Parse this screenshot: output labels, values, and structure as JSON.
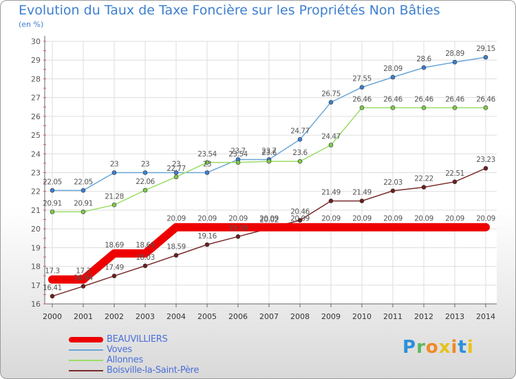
{
  "title": "Evolution du Taux de Taxe Foncière sur les Propriétés Non Bâties",
  "unit_label": "(en %)",
  "logo_text": "Proxiti",
  "chart_data": {
    "type": "line",
    "title": "Evolution du Taux de Taxe Foncière sur les Propriétés Non Bâties",
    "ylabel": "(en %)",
    "ylim": [
      16,
      30
    ],
    "yticks": [
      16,
      17,
      18,
      19,
      20,
      21,
      22,
      23,
      24,
      25,
      26,
      27,
      28,
      29,
      30
    ],
    "grid": true,
    "legend_position": "bottom-left",
    "x": [
      "2000",
      "2001",
      "2002",
      "2003",
      "2004",
      "2005",
      "2006",
      "2007",
      "2008",
      "2009",
      "2010",
      "2011",
      "2012",
      "2013",
      "2014"
    ],
    "series": [
      {
        "name": "BEAUVILLIERS",
        "color": "#ee0000",
        "style": "thick",
        "values": [
          17.3,
          17.3,
          18.69,
          18.69,
          20.09,
          20.09,
          20.09,
          20.09,
          20.09,
          20.09,
          20.09,
          20.09,
          20.09,
          20.09,
          20.09
        ],
        "labels": [
          "17.3",
          "17.3",
          "18.69",
          "18.69",
          "20.09",
          "20.09",
          "20.09",
          "20.09",
          "20.09",
          "20.09",
          "20.09",
          "20.09",
          "20.09",
          "20.09",
          "20.09"
        ]
      },
      {
        "name": "Voves",
        "color": "#6aa6d8",
        "marker_color": "#3d7fcf",
        "style": "thin",
        "values": [
          22.05,
          22.05,
          23,
          23,
          23,
          23,
          23.7,
          23.7,
          24.77,
          26.75,
          27.55,
          28.09,
          28.6,
          28.89,
          29.15
        ],
        "labels": [
          "22.05",
          "22.05",
          "23",
          "23",
          "23",
          "23",
          "23.7",
          "23.7",
          "24.77",
          "26.75",
          "27.55",
          "28.09",
          "28.6",
          "28.89",
          "29.15"
        ]
      },
      {
        "name": "Allonnes",
        "color": "#99dd66",
        "marker_color": "#7fc94c",
        "style": "thin",
        "values": [
          20.91,
          20.91,
          21.28,
          22.06,
          22.77,
          23.54,
          23.54,
          23.6,
          23.6,
          24.47,
          26.46,
          26.46,
          26.46,
          26.46,
          26.46
        ],
        "labels": [
          "20.91",
          "20.91",
          "21.28",
          "22.06",
          "22.77",
          "23.54",
          "23.54",
          "23.6",
          "23.6",
          "24.47",
          "26.46",
          "26.46",
          "26.46",
          "26.46",
          "26.46"
        ]
      },
      {
        "name": "Boisville-la-Saint-Père",
        "color": "#7a2b2b",
        "marker_color": "#6b2020",
        "style": "thin",
        "values": [
          16.41,
          16.94,
          17.49,
          18.03,
          18.59,
          19.16,
          19.59,
          20.02,
          20.46,
          21.49,
          21.49,
          22.03,
          22.22,
          22.51,
          23.23
        ],
        "labels": [
          "16.41",
          "16.94",
          "17.49",
          "18.03",
          "18.59",
          "19.16",
          "19.59",
          "20.02",
          "20.46",
          "21.49",
          "21.49",
          "22.03",
          "22.22",
          "22.51",
          "23.23"
        ]
      }
    ]
  }
}
